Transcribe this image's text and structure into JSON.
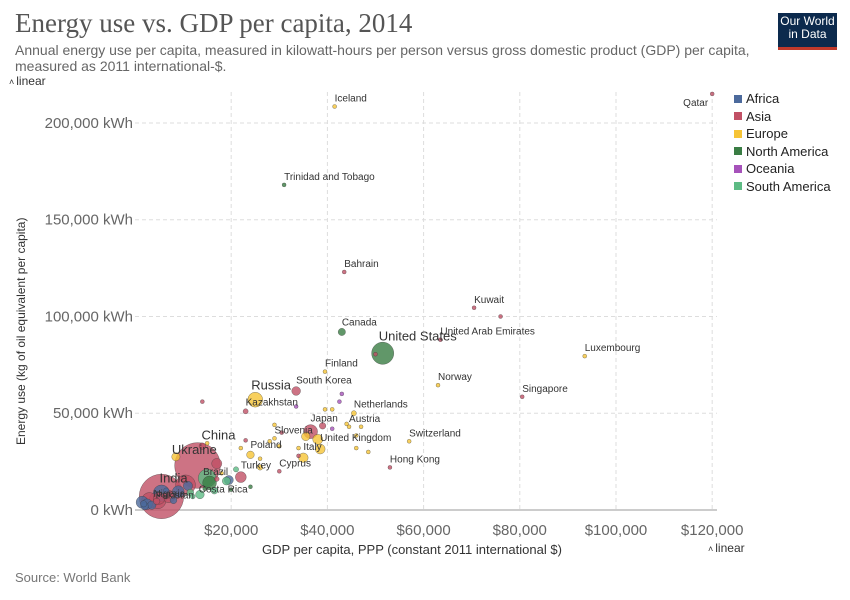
{
  "header": {
    "title": "Energy use vs. GDP per capita, 2014",
    "subtitle": "Annual energy use per capita, measured in kilowatt-hours per person versus gross domestic product (GDP) per capita, measured as 2011 international-$.",
    "logo_line1": "Our World",
    "logo_line2": "in Data"
  },
  "controls": {
    "y_scale_label": "linear",
    "x_scale_label": "linear"
  },
  "footer": {
    "source": "Source: World Bank"
  },
  "legend": [
    {
      "name": "Africa",
      "color": "#4c6a9c"
    },
    {
      "name": "Asia",
      "color": "#c15065"
    },
    {
      "name": "Europe",
      "color": "#f6c436"
    },
    {
      "name": "North America",
      "color": "#3a7d44"
    },
    {
      "name": "Oceania",
      "color": "#a652ba"
    },
    {
      "name": "South America",
      "color": "#5dbb84"
    }
  ],
  "chart_data": {
    "type": "scatter",
    "title": "Energy use vs. GDP per capita, 2014",
    "xlabel": "GDP per capita, PPP (constant 2011 international $)",
    "ylabel": "Energy use (kg of oil equivalent per capita)",
    "xlim": [
      0,
      121000
    ],
    "ylim": [
      0,
      216000
    ],
    "x_ticks": [
      {
        "value": 20000,
        "label": "$20,000"
      },
      {
        "value": 40000,
        "label": "$40,000"
      },
      {
        "value": 60000,
        "label": "$60,000"
      },
      {
        "value": 80000,
        "label": "$80,000"
      },
      {
        "value": 100000,
        "label": "$100,000"
      },
      {
        "value": 120000,
        "label": "$120,000"
      }
    ],
    "y_ticks": [
      {
        "value": 0,
        "label": "0 kWh"
      },
      {
        "value": 50000,
        "label": "50,000 kWh"
      },
      {
        "value": 100000,
        "label": "100,000 kWh"
      },
      {
        "value": 150000,
        "label": "150,000 kWh"
      },
      {
        "value": 200000,
        "label": "200,000 kWh"
      }
    ],
    "grid": true,
    "legend_position": "right",
    "points": [
      {
        "label": "Qatar",
        "x": 120000,
        "y": 215000,
        "region": "Asia",
        "pop": 2.2
      },
      {
        "label": "Iceland",
        "x": 41500,
        "y": 208500,
        "region": "Europe",
        "pop": 0.33
      },
      {
        "label": "Trinidad and Tobago",
        "x": 31000,
        "y": 168000,
        "region": "North America",
        "pop": 1.4
      },
      {
        "label": "Bahrain",
        "x": 43500,
        "y": 123000,
        "region": "Asia",
        "pop": 1.3
      },
      {
        "label": "Kuwait",
        "x": 70500,
        "y": 104500,
        "region": "Asia",
        "pop": 3.8
      },
      {
        "label": "",
        "x": 76000,
        "y": 100000,
        "region": "Asia",
        "pop": 0.4
      },
      {
        "label": "Canada",
        "x": 43000,
        "y": 92000,
        "region": "North America",
        "pop": 35
      },
      {
        "label": "United Arab Emirates",
        "x": 63500,
        "y": 88000,
        "region": "Asia",
        "pop": 9
      },
      {
        "label": "United States",
        "x": 51500,
        "y": 81000,
        "region": "North America",
        "pop": 320
      },
      {
        "label": "",
        "x": 50000,
        "y": 80500,
        "region": "Asia",
        "pop": 0.4
      },
      {
        "label": "Luxembourg",
        "x": 93500,
        "y": 79500,
        "region": "Europe",
        "pop": 0.55
      },
      {
        "label": "Finland",
        "x": 39500,
        "y": 71500,
        "region": "Europe",
        "pop": 5.5
      },
      {
        "label": "Norway",
        "x": 63000,
        "y": 64500,
        "region": "Europe",
        "pop": 5.1
      },
      {
        "label": "South Korea",
        "x": 33500,
        "y": 61500,
        "region": "Asia",
        "pop": 50
      },
      {
        "label": "Russia",
        "x": 25000,
        "y": 57000,
        "region": "Europe",
        "pop": 144
      },
      {
        "label": "Singapore",
        "x": 80500,
        "y": 58500,
        "region": "Asia",
        "pop": 5.5
      },
      {
        "label": "",
        "x": 14000,
        "y": 56000,
        "region": "Asia",
        "pop": 0.4
      },
      {
        "label": "Kazakhstan",
        "x": 23000,
        "y": 51000,
        "region": "Asia",
        "pop": 17
      },
      {
        "label": "Netherlands",
        "x": 45500,
        "y": 50000,
        "region": "Europe",
        "pop": 17
      },
      {
        "label": "",
        "x": 41000,
        "y": 52000,
        "region": "Europe",
        "pop": 0.4
      },
      {
        "label": "",
        "x": 39500,
        "y": 52000,
        "region": "Europe",
        "pop": 0.4
      },
      {
        "label": "",
        "x": 42500,
        "y": 56000,
        "region": "Oceania",
        "pop": 0.4
      },
      {
        "label": "",
        "x": 43000,
        "y": 60000,
        "region": "Oceania",
        "pop": 0.4
      },
      {
        "label": "Austria",
        "x": 44500,
        "y": 43000,
        "region": "Europe",
        "pop": 8.5
      },
      {
        "label": "Japan",
        "x": 36500,
        "y": 40500,
        "region": "Asia",
        "pop": 127
      },
      {
        "label": "Slovenia",
        "x": 29000,
        "y": 37000,
        "region": "Europe",
        "pop": 2
      },
      {
        "label": "Switzerland",
        "x": 57000,
        "y": 35500,
        "region": "Europe",
        "pop": 8.2
      },
      {
        "label": "United Kingdom",
        "x": 38500,
        "y": 31500,
        "region": "Europe",
        "pop": 64
      },
      {
        "label": "China",
        "x": 13000,
        "y": 23000,
        "region": "Asia",
        "pop": 1360
      },
      {
        "label": "Ukraine",
        "x": 8500,
        "y": 27500,
        "region": "Europe",
        "pop": 45
      },
      {
        "label": "Poland",
        "x": 24000,
        "y": 28500,
        "region": "Europe",
        "pop": 38
      },
      {
        "label": "Italy",
        "x": 35000,
        "y": 27000,
        "region": "Europe",
        "pop": 60
      },
      {
        "label": "Hong Kong",
        "x": 53000,
        "y": 22000,
        "region": "Asia",
        "pop": 7
      },
      {
        "label": "Cyprus",
        "x": 30000,
        "y": 20000,
        "region": "Asia",
        "pop": 1.1
      },
      {
        "label": "Turkey",
        "x": 22000,
        "y": 17000,
        "region": "Asia",
        "pop": 77
      },
      {
        "label": "Brazil",
        "x": 15000,
        "y": 16500,
        "region": "South America",
        "pop": 204
      },
      {
        "label": "Costa Rica",
        "x": 14500,
        "y": 11000,
        "region": "North America",
        "pop": 4.8
      },
      {
        "label": "India",
        "x": 5500,
        "y": 7000,
        "region": "Asia",
        "pop": 1290
      },
      {
        "label": "Pakistan",
        "x": 4700,
        "y": 5000,
        "region": "Asia",
        "pop": 185
      },
      {
        "label": "Nigeria",
        "x": 5500,
        "y": 8700,
        "region": "Africa",
        "pop": 176
      },
      {
        "label": "",
        "x": 10500,
        "y": 13000,
        "region": "Asia",
        "pop": 255
      },
      {
        "label": "",
        "x": 15500,
        "y": 14000,
        "region": "North America",
        "pop": 125
      },
      {
        "label": "",
        "x": 11000,
        "y": 12500,
        "region": "Africa",
        "pop": 55
      },
      {
        "label": "",
        "x": 17000,
        "y": 24000,
        "region": "Asia",
        "pop": 68
      },
      {
        "label": "",
        "x": 9000,
        "y": 9500,
        "region": "Africa",
        "pop": 90
      },
      {
        "label": "",
        "x": 1500,
        "y": 4000,
        "region": "Africa",
        "pop": 97
      },
      {
        "label": "",
        "x": 2500,
        "y": 3000,
        "region": "Africa",
        "pop": 75
      },
      {
        "label": "",
        "x": 3500,
        "y": 2500,
        "region": "Africa",
        "pop": 46
      },
      {
        "label": "",
        "x": 2000,
        "y": 2000,
        "region": "Africa",
        "pop": 36
      },
      {
        "label": "",
        "x": 1800,
        "y": 3200,
        "region": "Africa",
        "pop": 27
      },
      {
        "label": "",
        "x": 3000,
        "y": 5000,
        "region": "Asia",
        "pop": 158
      },
      {
        "label": "",
        "x": 4500,
        "y": 4500,
        "region": "Asia",
        "pop": 28
      },
      {
        "label": "",
        "x": 5000,
        "y": 6000,
        "region": "Asia",
        "pop": 90
      },
      {
        "label": "",
        "x": 7000,
        "y": 7000,
        "region": "Asia",
        "pop": 100
      },
      {
        "label": "",
        "x": 8000,
        "y": 5000,
        "region": "Africa",
        "pop": 30
      },
      {
        "label": "",
        "x": 6500,
        "y": 10000,
        "region": "Africa",
        "pop": 20
      },
      {
        "label": "",
        "x": 12000,
        "y": 7000,
        "region": "South America",
        "pop": 16
      },
      {
        "label": "",
        "x": 11500,
        "y": 9000,
        "region": "South America",
        "pop": 31
      },
      {
        "label": "",
        "x": 13500,
        "y": 8000,
        "region": "South America",
        "pop": 48
      },
      {
        "label": "",
        "x": 16500,
        "y": 10000,
        "region": "South America",
        "pop": 30
      },
      {
        "label": "",
        "x": 19000,
        "y": 15000,
        "region": "South America",
        "pop": 43
      },
      {
        "label": "",
        "x": 21000,
        "y": 21000,
        "region": "South America",
        "pop": 18
      },
      {
        "label": "",
        "x": 20000,
        "y": 10500,
        "region": "North America",
        "pop": 10
      },
      {
        "label": "",
        "x": 14000,
        "y": 33000,
        "region": "Asia",
        "pop": 28
      },
      {
        "label": "",
        "x": 15000,
        "y": 34500,
        "region": "Europe",
        "pop": 10
      },
      {
        "label": "",
        "x": 17000,
        "y": 16000,
        "region": "Asia",
        "pop": 15
      },
      {
        "label": "",
        "x": 18000,
        "y": 19000,
        "region": "Europe",
        "pop": 10
      },
      {
        "label": "",
        "x": 19500,
        "y": 15500,
        "region": "Africa",
        "pop": 54
      },
      {
        "label": "",
        "x": 26000,
        "y": 26500,
        "region": "Europe",
        "pop": 10
      },
      {
        "label": "",
        "x": 26000,
        "y": 22000,
        "region": "Europe",
        "pop": 19
      },
      {
        "label": "",
        "x": 28000,
        "y": 35500,
        "region": "Europe",
        "pop": 10
      },
      {
        "label": "",
        "x": 34000,
        "y": 28000,
        "region": "Asia",
        "pop": 5
      },
      {
        "label": "",
        "x": 35500,
        "y": 38000,
        "region": "Europe",
        "pop": 47
      },
      {
        "label": "",
        "x": 39000,
        "y": 43500,
        "region": "Asia",
        "pop": 28
      },
      {
        "label": "",
        "x": 30000,
        "y": 33000,
        "region": "Europe",
        "pop": 11
      },
      {
        "label": "",
        "x": 29000,
        "y": 44000,
        "region": "Europe",
        "pop": 1
      },
      {
        "label": "",
        "x": 46000,
        "y": 32000,
        "region": "Europe",
        "pop": 1
      },
      {
        "label": "",
        "x": 48500,
        "y": 30000,
        "region": "Europe",
        "pop": 1
      },
      {
        "label": "",
        "x": 38000,
        "y": 36500,
        "region": "Europe",
        "pop": 66
      },
      {
        "label": "",
        "x": 44000,
        "y": 44500,
        "region": "Europe",
        "pop": 10
      },
      {
        "label": "",
        "x": 46000,
        "y": 38500,
        "region": "Europe",
        "pop": 1
      },
      {
        "label": "",
        "x": 47000,
        "y": 43000,
        "region": "Europe",
        "pop": 1
      },
      {
        "label": "",
        "x": 34000,
        "y": 32000,
        "region": "Europe",
        "pop": 1
      },
      {
        "label": "",
        "x": 30500,
        "y": 40000,
        "region": "Asia",
        "pop": 1
      },
      {
        "label": "",
        "x": 33500,
        "y": 53500,
        "region": "Oceania",
        "pop": 1
      },
      {
        "label": "",
        "x": 41000,
        "y": 42000,
        "region": "Oceania",
        "pop": 1
      },
      {
        "label": "",
        "x": 23000,
        "y": 36000,
        "region": "Asia",
        "pop": 1
      },
      {
        "label": "",
        "x": 22000,
        "y": 32000,
        "region": "Europe",
        "pop": 1
      },
      {
        "label": "",
        "x": 24000,
        "y": 12000,
        "region": "North America",
        "pop": 1
      }
    ]
  }
}
